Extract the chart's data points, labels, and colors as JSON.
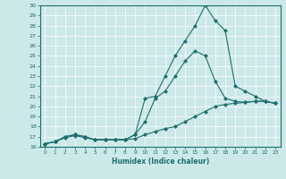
{
  "xlabel": "Humidex (Indice chaleur)",
  "ylabel": "",
  "xlim": [
    -0.5,
    23.5
  ],
  "ylim": [
    16,
    30
  ],
  "xticks": [
    0,
    1,
    2,
    3,
    4,
    5,
    6,
    7,
    8,
    9,
    10,
    11,
    12,
    13,
    14,
    15,
    16,
    17,
    18,
    19,
    20,
    21,
    22,
    23
  ],
  "yticks": [
    16,
    17,
    18,
    19,
    20,
    21,
    22,
    23,
    24,
    25,
    26,
    27,
    28,
    29,
    30
  ],
  "bg_color": "#cce8e8",
  "line_color": "#1a6e6e",
  "grid_color": "#ffffff",
  "line1_x": [
    0,
    1,
    2,
    3,
    4,
    5,
    6,
    7,
    8,
    9,
    10,
    11,
    12,
    13,
    14,
    15,
    16,
    17,
    18,
    19,
    20,
    21,
    22,
    23
  ],
  "line1_y": [
    16.3,
    16.5,
    16.9,
    17.1,
    16.9,
    16.7,
    16.7,
    16.7,
    16.7,
    16.8,
    17.2,
    17.5,
    17.8,
    18.0,
    18.5,
    19.0,
    19.5,
    20.0,
    20.2,
    20.3,
    20.4,
    20.5,
    20.5,
    20.3
  ],
  "line2_x": [
    0,
    1,
    2,
    3,
    4,
    5,
    6,
    7,
    8,
    9,
    10,
    11,
    12,
    13,
    14,
    15,
    16,
    17,
    18,
    19,
    20,
    21,
    22,
    23
  ],
  "line2_y": [
    16.3,
    16.5,
    17.0,
    17.2,
    17.0,
    16.7,
    16.7,
    16.7,
    16.7,
    17.2,
    18.5,
    20.8,
    21.5,
    23.0,
    24.5,
    25.5,
    25.0,
    22.5,
    20.8,
    20.5,
    20.4,
    20.5,
    20.5,
    20.3
  ],
  "line3_x": [
    0,
    1,
    2,
    3,
    4,
    5,
    6,
    7,
    8,
    9,
    10,
    11,
    12,
    13,
    14,
    15,
    16,
    17,
    18,
    19,
    20,
    21,
    22,
    23
  ],
  "line3_y": [
    16.3,
    16.5,
    17.0,
    17.2,
    17.0,
    16.7,
    16.7,
    16.7,
    16.7,
    17.2,
    20.8,
    21.0,
    23.0,
    25.0,
    26.5,
    28.0,
    30.0,
    28.5,
    27.5,
    22.0,
    21.5,
    21.0,
    20.5,
    20.3
  ]
}
